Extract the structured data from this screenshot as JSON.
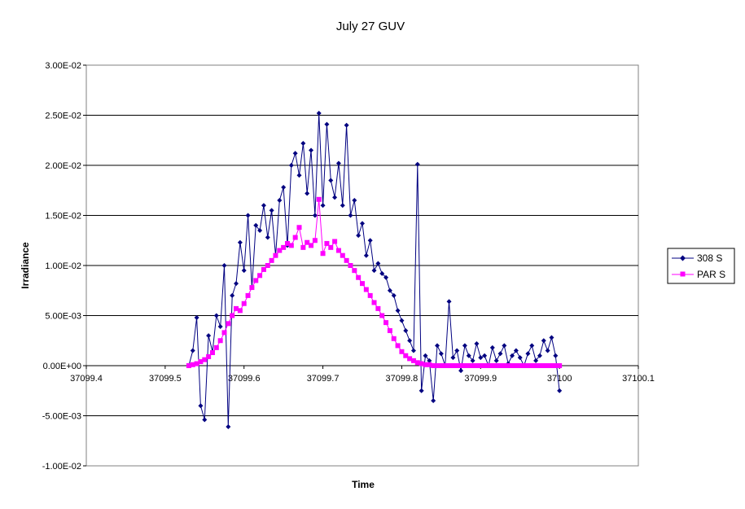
{
  "chart_data": {
    "type": "scatter",
    "title": "July 27 GUV",
    "xlabel": "Time",
    "ylabel": "Irradiance",
    "xlim": [
      37099.4,
      37100.1
    ],
    "ylim": [
      -0.01,
      0.03
    ],
    "x_ticks": [
      37099.4,
      37099.5,
      37099.6,
      37099.7,
      37099.8,
      37099.9,
      37100,
      37100.1
    ],
    "x_tick_labels": [
      "37099.4",
      "37099.5",
      "37099.6",
      "37099.7",
      "37099.8",
      "37099.9",
      "37100",
      "37100.1"
    ],
    "y_ticks": [
      -0.01,
      -0.005,
      0,
      0.005,
      0.01,
      0.015,
      0.02,
      0.025,
      0.03
    ],
    "y_tick_labels": [
      "-1.00E-02",
      "-5.00E-03",
      "0.00E+00",
      "5.00E-03",
      "1.00E-02",
      "1.50E-02",
      "2.00E-02",
      "2.50E-02",
      "3.00E-02"
    ],
    "grid": "horizontal major gridlines",
    "legend": "right",
    "series": [
      {
        "name": "308 S",
        "color": "#000080",
        "marker": "diamond",
        "x": [
          37099.53,
          37099.535,
          37099.54,
          37099.545,
          37099.55,
          37099.555,
          37099.56,
          37099.565,
          37099.57,
          37099.575,
          37099.58,
          37099.585,
          37099.59,
          37099.595,
          37099.6,
          37099.605,
          37099.61,
          37099.615,
          37099.62,
          37099.625,
          37099.63,
          37099.635,
          37099.64,
          37099.645,
          37099.65,
          37099.655,
          37099.66,
          37099.665,
          37099.67,
          37099.675,
          37099.68,
          37099.685,
          37099.69,
          37099.695,
          37099.7,
          37099.705,
          37099.71,
          37099.715,
          37099.72,
          37099.725,
          37099.73,
          37099.735,
          37099.74,
          37099.745,
          37099.75,
          37099.755,
          37099.76,
          37099.765,
          37099.77,
          37099.775,
          37099.78,
          37099.785,
          37099.79,
          37099.795,
          37099.8,
          37099.805,
          37099.81,
          37099.815,
          37099.82,
          37099.825,
          37099.83,
          37099.835,
          37099.84,
          37099.845,
          37099.85,
          37099.855,
          37099.86,
          37099.865,
          37099.87,
          37099.875,
          37099.88,
          37099.885,
          37099.89,
          37099.895,
          37099.9,
          37099.905,
          37099.91,
          37099.915,
          37099.92,
          37099.925,
          37099.93,
          37099.935,
          37099.94,
          37099.945,
          37099.95,
          37099.955,
          37099.96,
          37099.965,
          37099.97,
          37099.975,
          37099.98,
          37099.985,
          37099.99,
          37099.995,
          37100.0
        ],
        "y": [
          0.0,
          0.0015,
          0.0048,
          -0.004,
          -0.0054,
          0.003,
          0.0014,
          0.005,
          0.0039,
          0.01,
          -0.0061,
          0.007,
          0.0082,
          0.0123,
          0.0095,
          0.015,
          0.0078,
          0.014,
          0.0135,
          0.016,
          0.0128,
          0.0155,
          0.011,
          0.0165,
          0.0178,
          0.012,
          0.02,
          0.0212,
          0.019,
          0.0222,
          0.0172,
          0.0215,
          0.015,
          0.0252,
          0.016,
          0.0241,
          0.0185,
          0.0168,
          0.0202,
          0.016,
          0.024,
          0.015,
          0.0165,
          0.013,
          0.0142,
          0.011,
          0.0125,
          0.0095,
          0.0102,
          0.0092,
          0.0088,
          0.0075,
          0.007,
          0.0055,
          0.0045,
          0.0035,
          0.0025,
          0.0015,
          0.0201,
          -0.0025,
          0.001,
          0.0005,
          -0.0035,
          0.002,
          0.0012,
          0.0,
          0.0064,
          0.0008,
          0.0015,
          -0.0005,
          0.002,
          0.001,
          0.0005,
          0.0022,
          0.0008,
          0.001,
          0.0,
          0.0018,
          0.0005,
          0.0012,
          0.002,
          0.0002,
          0.001,
          0.0015,
          0.0008,
          0.0,
          0.0012,
          0.002,
          0.0005,
          0.001,
          0.0025,
          0.0015,
          0.0028,
          0.001,
          -0.0025
        ]
      },
      {
        "name": "PAR S",
        "color": "#FF00FF",
        "marker": "square",
        "x": [
          37099.53,
          37099.535,
          37099.54,
          37099.545,
          37099.55,
          37099.555,
          37099.56,
          37099.565,
          37099.57,
          37099.575,
          37099.58,
          37099.585,
          37099.59,
          37099.595,
          37099.6,
          37099.605,
          37099.61,
          37099.615,
          37099.62,
          37099.625,
          37099.63,
          37099.635,
          37099.64,
          37099.645,
          37099.65,
          37099.655,
          37099.66,
          37099.665,
          37099.67,
          37099.675,
          37099.68,
          37099.685,
          37099.69,
          37099.695,
          37099.7,
          37099.705,
          37099.71,
          37099.715,
          37099.72,
          37099.725,
          37099.73,
          37099.735,
          37099.74,
          37099.745,
          37099.75,
          37099.755,
          37099.76,
          37099.765,
          37099.77,
          37099.775,
          37099.78,
          37099.785,
          37099.79,
          37099.795,
          37099.8,
          37099.805,
          37099.81,
          37099.815,
          37099.82,
          37099.825,
          37099.83,
          37099.835,
          37099.84,
          37099.845,
          37099.85,
          37099.855,
          37099.86,
          37099.865,
          37099.87,
          37099.875,
          37099.88,
          37099.885,
          37099.89,
          37099.895,
          37099.9,
          37099.905,
          37099.91,
          37099.915,
          37099.92,
          37099.925,
          37099.93,
          37099.935,
          37099.94,
          37099.945,
          37099.95,
          37099.955,
          37099.96,
          37099.965,
          37099.97,
          37099.975,
          37099.98,
          37099.985,
          37099.99,
          37099.995,
          37100.0
        ],
        "y": [
          0.0,
          0.0001,
          0.0002,
          0.0004,
          0.0006,
          0.0009,
          0.0013,
          0.0018,
          0.0025,
          0.0033,
          0.0042,
          0.005,
          0.0057,
          0.0055,
          0.0062,
          0.007,
          0.0078,
          0.0085,
          0.009,
          0.0096,
          0.01,
          0.0105,
          0.011,
          0.0115,
          0.0118,
          0.0122,
          0.012,
          0.0128,
          0.0138,
          0.0118,
          0.0123,
          0.012,
          0.0125,
          0.0166,
          0.0112,
          0.0122,
          0.0118,
          0.0124,
          0.0115,
          0.011,
          0.0105,
          0.01,
          0.0095,
          0.0088,
          0.0082,
          0.0076,
          0.007,
          0.0063,
          0.0057,
          0.005,
          0.0043,
          0.0035,
          0.0027,
          0.002,
          0.0014,
          0.001,
          0.0007,
          0.0005,
          0.0003,
          0.0002,
          0.0001,
          0.0001,
          0.0,
          0.0,
          0.0,
          0.0,
          0.0,
          0.0,
          0.0,
          0.0,
          0.0,
          0.0,
          0.0,
          0.0,
          0.0,
          0.0,
          0.0,
          0.0,
          0.0,
          0.0,
          0.0,
          0.0,
          0.0,
          0.0,
          0.0,
          0.0,
          0.0,
          0.0,
          0.0,
          0.0,
          0.0,
          0.0,
          0.0,
          0.0,
          0.0
        ]
      }
    ]
  }
}
